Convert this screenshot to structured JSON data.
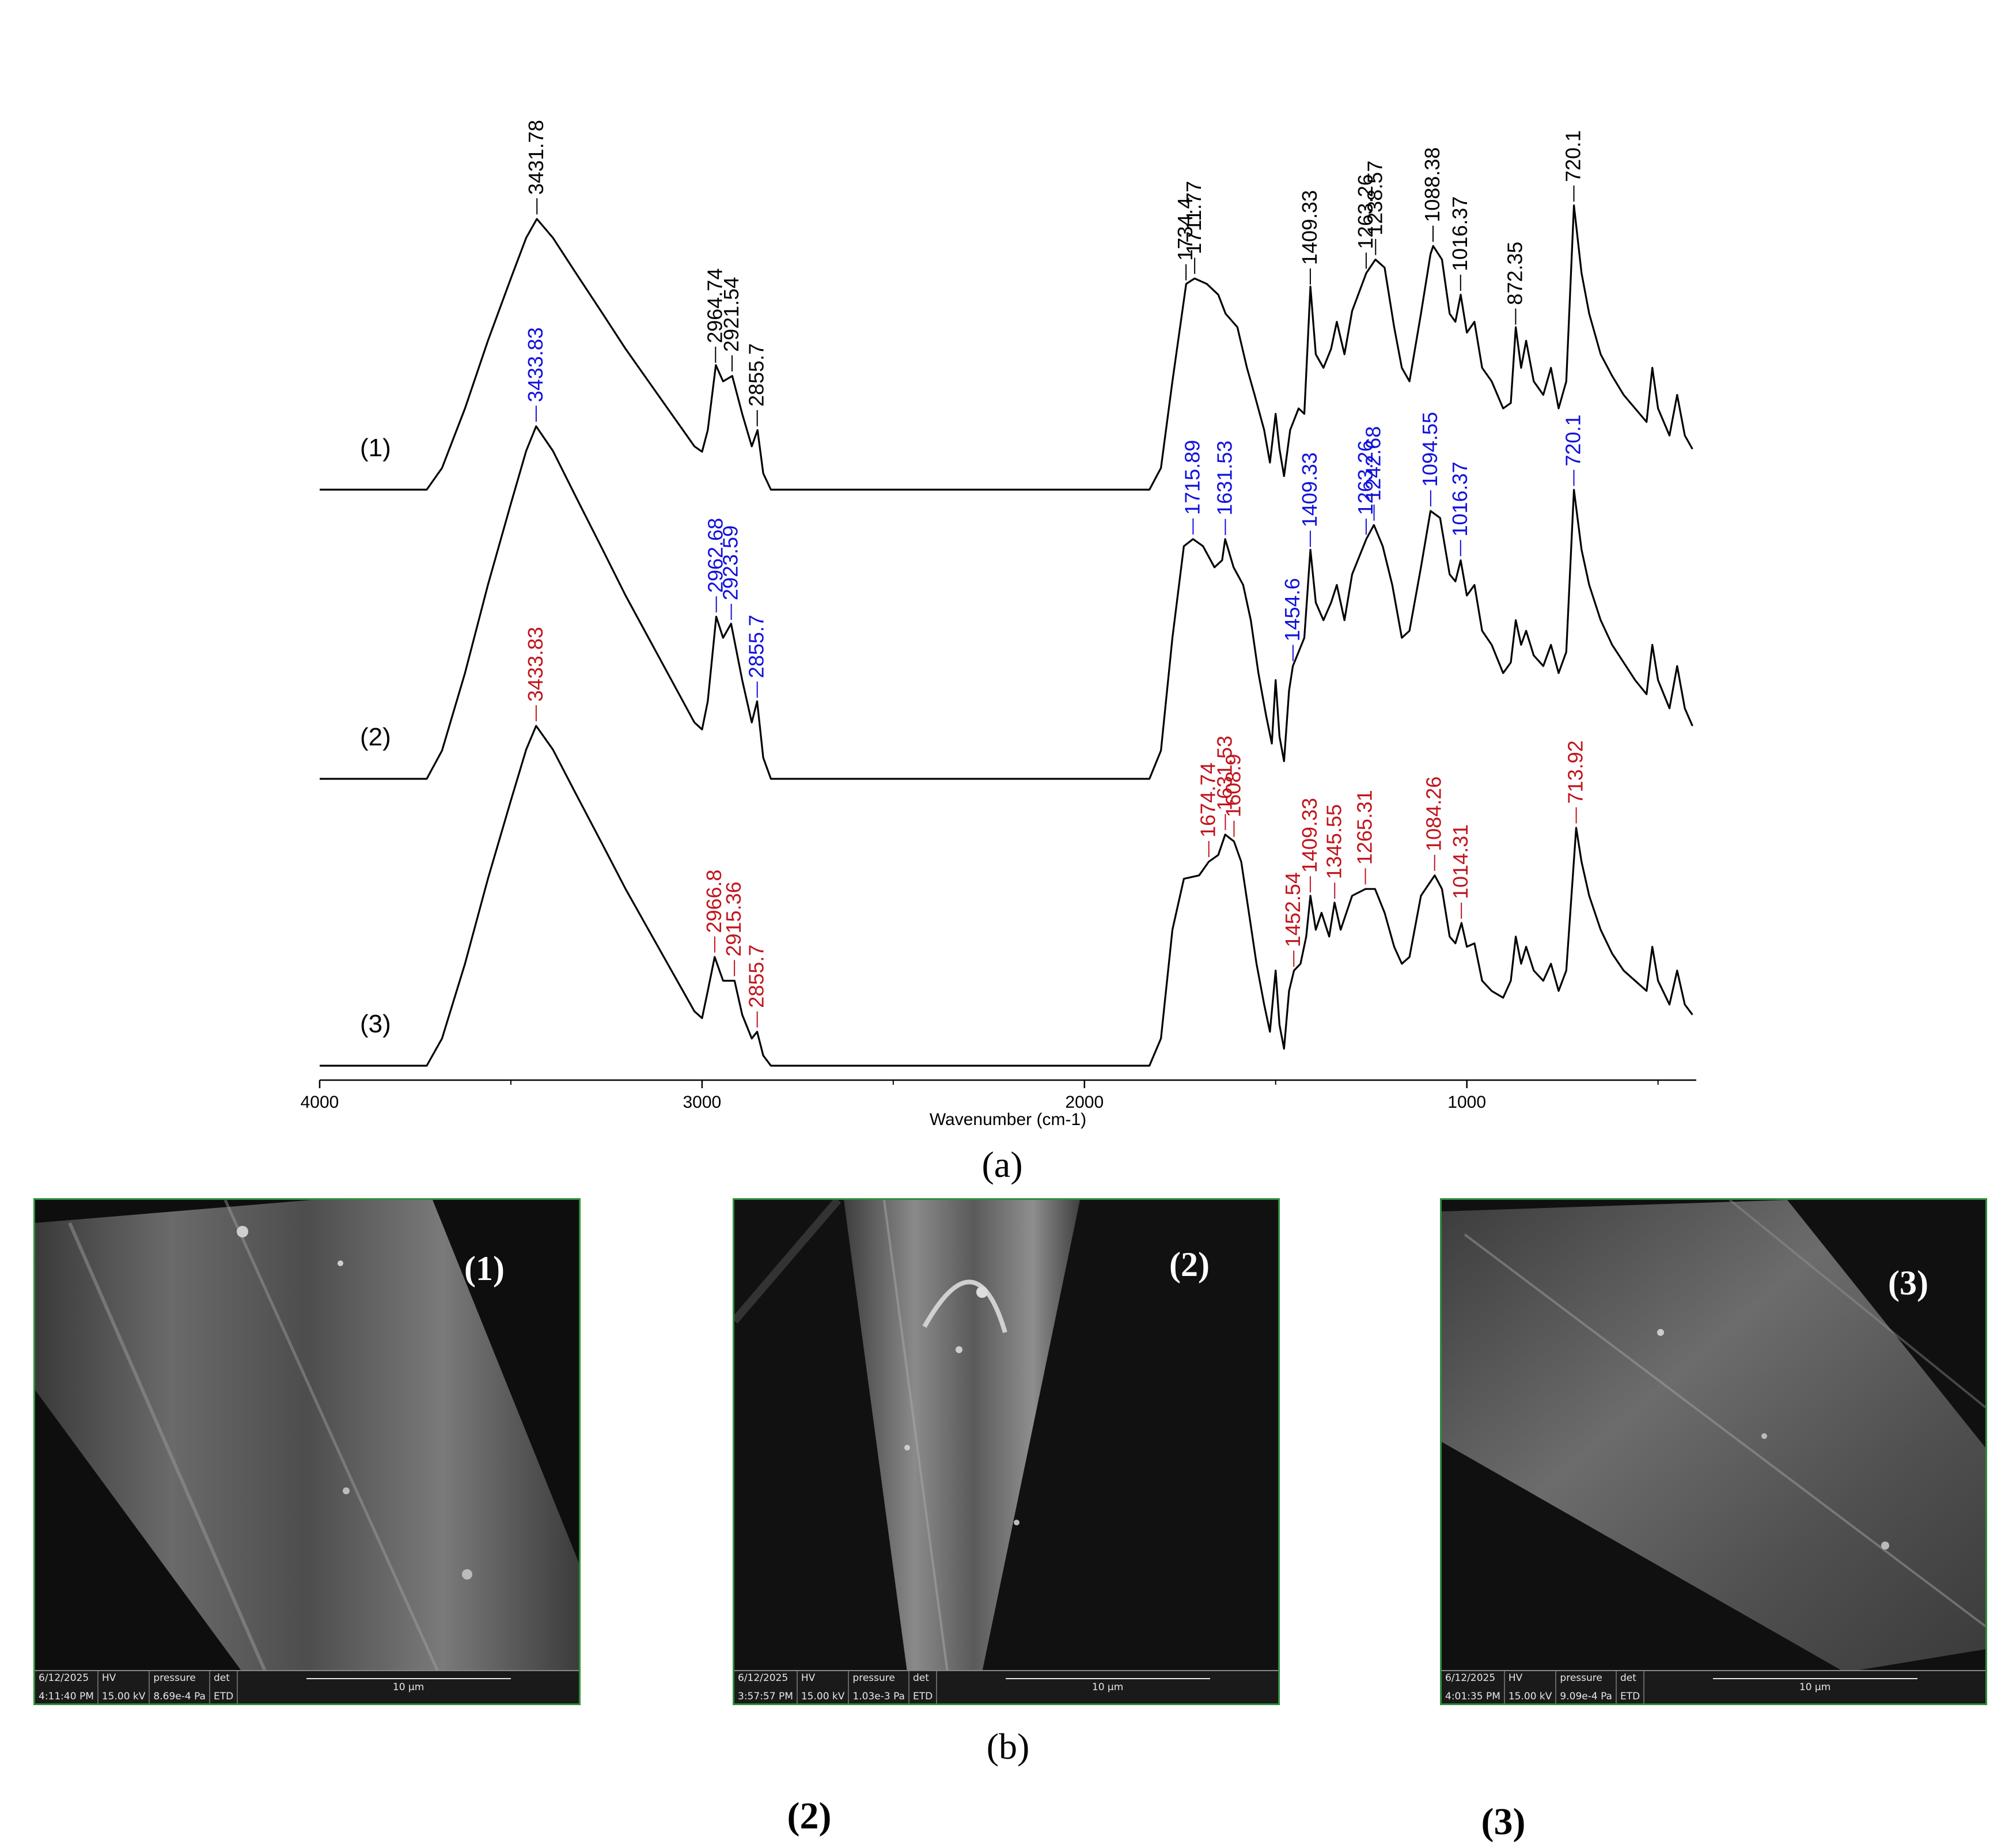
{
  "chart_data": {
    "type": "line",
    "xlabel": "Wavenumber (cm-1)",
    "xlim": [
      4000,
      400
    ],
    "x_reversed": true,
    "xticks": [
      4000,
      3000,
      2000,
      1000
    ],
    "series": [
      {
        "name": "(1)",
        "label_color": "#000000",
        "points": [
          [
            4000,
            0.0
          ],
          [
            3720,
            0.0
          ],
          [
            3680,
            0.08
          ],
          [
            3620,
            0.3
          ],
          [
            3560,
            0.55
          ],
          [
            3500,
            0.78
          ],
          [
            3460,
            0.93
          ],
          [
            3432,
            1.0
          ],
          [
            3390,
            0.93
          ],
          [
            3330,
            0.8
          ],
          [
            3260,
            0.65
          ],
          [
            3200,
            0.52
          ],
          [
            3140,
            0.4
          ],
          [
            3090,
            0.3
          ],
          [
            3050,
            0.22
          ],
          [
            3020,
            0.16
          ],
          [
            3000,
            0.14
          ],
          [
            2985,
            0.22
          ],
          [
            2964,
            0.46
          ],
          [
            2945,
            0.4
          ],
          [
            2921,
            0.42
          ],
          [
            2895,
            0.28
          ],
          [
            2870,
            0.16
          ],
          [
            2855,
            0.22
          ],
          [
            2840,
            0.06
          ],
          [
            2820,
            0.0
          ],
          [
            1830,
            0.0
          ],
          [
            1800,
            0.08
          ],
          [
            1770,
            0.4
          ],
          [
            1734,
            0.76
          ],
          [
            1712,
            0.78
          ],
          [
            1680,
            0.76
          ],
          [
            1650,
            0.72
          ],
          [
            1631,
            0.65
          ],
          [
            1600,
            0.6
          ],
          [
            1575,
            0.45
          ],
          [
            1555,
            0.35
          ],
          [
            1530,
            0.22
          ],
          [
            1515,
            0.1
          ],
          [
            1500,
            0.28
          ],
          [
            1490,
            0.15
          ],
          [
            1478,
            0.05
          ],
          [
            1462,
            0.22
          ],
          [
            1440,
            0.3
          ],
          [
            1425,
            0.28
          ],
          [
            1409,
            0.75
          ],
          [
            1395,
            0.5
          ],
          [
            1375,
            0.45
          ],
          [
            1355,
            0.52
          ],
          [
            1340,
            0.62
          ],
          [
            1320,
            0.5
          ],
          [
            1300,
            0.66
          ],
          [
            1263,
            0.8
          ],
          [
            1239,
            0.85
          ],
          [
            1215,
            0.82
          ],
          [
            1190,
            0.6
          ],
          [
            1170,
            0.45
          ],
          [
            1150,
            0.4
          ],
          [
            1120,
            0.65
          ],
          [
            1095,
            0.87
          ],
          [
            1088,
            0.9
          ],
          [
            1065,
            0.85
          ],
          [
            1045,
            0.65
          ],
          [
            1030,
            0.62
          ],
          [
            1016,
            0.72
          ],
          [
            1000,
            0.58
          ],
          [
            980,
            0.62
          ],
          [
            960,
            0.45
          ],
          [
            935,
            0.4
          ],
          [
            905,
            0.3
          ],
          [
            885,
            0.32
          ],
          [
            872,
            0.6
          ],
          [
            858,
            0.45
          ],
          [
            845,
            0.55
          ],
          [
            825,
            0.4
          ],
          [
            800,
            0.35
          ],
          [
            780,
            0.45
          ],
          [
            760,
            0.3
          ],
          [
            740,
            0.4
          ],
          [
            720,
            1.05
          ],
          [
            700,
            0.8
          ],
          [
            680,
            0.65
          ],
          [
            650,
            0.5
          ],
          [
            620,
            0.42
          ],
          [
            590,
            0.35
          ],
          [
            560,
            0.3
          ],
          [
            530,
            0.25
          ],
          [
            515,
            0.45
          ],
          [
            500,
            0.3
          ],
          [
            470,
            0.2
          ],
          [
            450,
            0.35
          ],
          [
            430,
            0.2
          ],
          [
            410,
            0.15
          ]
        ]
      },
      {
        "name": "(2)",
        "label_color": "#1010dd",
        "points": [
          [
            4000,
            0.0
          ],
          [
            3720,
            0.0
          ],
          [
            3680,
            0.08
          ],
          [
            3620,
            0.3
          ],
          [
            3560,
            0.55
          ],
          [
            3500,
            0.78
          ],
          [
            3460,
            0.93
          ],
          [
            3434,
            1.0
          ],
          [
            3390,
            0.93
          ],
          [
            3330,
            0.8
          ],
          [
            3260,
            0.65
          ],
          [
            3200,
            0.52
          ],
          [
            3140,
            0.4
          ],
          [
            3090,
            0.3
          ],
          [
            3050,
            0.22
          ],
          [
            3020,
            0.16
          ],
          [
            3000,
            0.14
          ],
          [
            2985,
            0.22
          ],
          [
            2963,
            0.46
          ],
          [
            2945,
            0.4
          ],
          [
            2924,
            0.44
          ],
          [
            2895,
            0.28
          ],
          [
            2870,
            0.16
          ],
          [
            2856,
            0.22
          ],
          [
            2840,
            0.06
          ],
          [
            2820,
            0.0
          ],
          [
            1830,
            0.0
          ],
          [
            1800,
            0.08
          ],
          [
            1770,
            0.4
          ],
          [
            1740,
            0.66
          ],
          [
            1716,
            0.68
          ],
          [
            1690,
            0.66
          ],
          [
            1660,
            0.6
          ],
          [
            1640,
            0.62
          ],
          [
            1632,
            0.68
          ],
          [
            1610,
            0.6
          ],
          [
            1585,
            0.55
          ],
          [
            1565,
            0.45
          ],
          [
            1545,
            0.3
          ],
          [
            1525,
            0.18
          ],
          [
            1510,
            0.1
          ],
          [
            1500,
            0.28
          ],
          [
            1490,
            0.12
          ],
          [
            1478,
            0.05
          ],
          [
            1465,
            0.25
          ],
          [
            1455,
            0.32
          ],
          [
            1440,
            0.36
          ],
          [
            1425,
            0.4
          ],
          [
            1409,
            0.65
          ],
          [
            1395,
            0.5
          ],
          [
            1375,
            0.45
          ],
          [
            1355,
            0.5
          ],
          [
            1340,
            0.55
          ],
          [
            1320,
            0.45
          ],
          [
            1300,
            0.58
          ],
          [
            1263,
            0.68
          ],
          [
            1243,
            0.72
          ],
          [
            1220,
            0.66
          ],
          [
            1195,
            0.55
          ],
          [
            1170,
            0.4
          ],
          [
            1150,
            0.42
          ],
          [
            1120,
            0.6
          ],
          [
            1095,
            0.76
          ],
          [
            1070,
            0.74
          ],
          [
            1045,
            0.58
          ],
          [
            1030,
            0.56
          ],
          [
            1016,
            0.62
          ],
          [
            1000,
            0.52
          ],
          [
            980,
            0.55
          ],
          [
            960,
            0.42
          ],
          [
            935,
            0.38
          ],
          [
            905,
            0.3
          ],
          [
            885,
            0.33
          ],
          [
            872,
            0.45
          ],
          [
            858,
            0.38
          ],
          [
            845,
            0.42
          ],
          [
            825,
            0.35
          ],
          [
            800,
            0.32
          ],
          [
            780,
            0.38
          ],
          [
            760,
            0.3
          ],
          [
            740,
            0.36
          ],
          [
            720,
            0.82
          ],
          [
            700,
            0.65
          ],
          [
            680,
            0.55
          ],
          [
            650,
            0.45
          ],
          [
            620,
            0.38
          ],
          [
            590,
            0.33
          ],
          [
            560,
            0.28
          ],
          [
            530,
            0.24
          ],
          [
            515,
            0.38
          ],
          [
            500,
            0.28
          ],
          [
            470,
            0.2
          ],
          [
            450,
            0.32
          ],
          [
            430,
            0.2
          ],
          [
            410,
            0.15
          ]
        ]
      },
      {
        "name": "(3)",
        "label_color": "#c0141c",
        "points": [
          [
            4000,
            0.0
          ],
          [
            3720,
            0.0
          ],
          [
            3680,
            0.08
          ],
          [
            3620,
            0.3
          ],
          [
            3560,
            0.55
          ],
          [
            3500,
            0.78
          ],
          [
            3460,
            0.93
          ],
          [
            3434,
            1.0
          ],
          [
            3390,
            0.93
          ],
          [
            3330,
            0.8
          ],
          [
            3260,
            0.65
          ],
          [
            3200,
            0.52
          ],
          [
            3140,
            0.4
          ],
          [
            3090,
            0.3
          ],
          [
            3050,
            0.22
          ],
          [
            3020,
            0.16
          ],
          [
            3000,
            0.14
          ],
          [
            2985,
            0.22
          ],
          [
            2967,
            0.32
          ],
          [
            2945,
            0.25
          ],
          [
            2915,
            0.25
          ],
          [
            2895,
            0.15
          ],
          [
            2870,
            0.08
          ],
          [
            2856,
            0.1
          ],
          [
            2840,
            0.03
          ],
          [
            2820,
            0.0
          ],
          [
            1830,
            0.0
          ],
          [
            1800,
            0.08
          ],
          [
            1770,
            0.4
          ],
          [
            1740,
            0.55
          ],
          [
            1700,
            0.56
          ],
          [
            1675,
            0.6
          ],
          [
            1650,
            0.62
          ],
          [
            1632,
            0.68
          ],
          [
            1609,
            0.66
          ],
          [
            1590,
            0.6
          ],
          [
            1570,
            0.45
          ],
          [
            1550,
            0.3
          ],
          [
            1530,
            0.18
          ],
          [
            1515,
            0.1
          ],
          [
            1500,
            0.28
          ],
          [
            1490,
            0.12
          ],
          [
            1478,
            0.05
          ],
          [
            1465,
            0.22
          ],
          [
            1452,
            0.28
          ],
          [
            1435,
            0.3
          ],
          [
            1420,
            0.38
          ],
          [
            1409,
            0.5
          ],
          [
            1395,
            0.4
          ],
          [
            1380,
            0.45
          ],
          [
            1360,
            0.38
          ],
          [
            1346,
            0.48
          ],
          [
            1330,
            0.4
          ],
          [
            1300,
            0.5
          ],
          [
            1265,
            0.52
          ],
          [
            1240,
            0.52
          ],
          [
            1215,
            0.45
          ],
          [
            1190,
            0.35
          ],
          [
            1170,
            0.3
          ],
          [
            1150,
            0.32
          ],
          [
            1120,
            0.5
          ],
          [
            1084,
            0.56
          ],
          [
            1065,
            0.52
          ],
          [
            1045,
            0.38
          ],
          [
            1030,
            0.36
          ],
          [
            1014,
            0.42
          ],
          [
            1000,
            0.35
          ],
          [
            980,
            0.36
          ],
          [
            960,
            0.25
          ],
          [
            935,
            0.22
          ],
          [
            905,
            0.2
          ],
          [
            885,
            0.25
          ],
          [
            872,
            0.38
          ],
          [
            858,
            0.3
          ],
          [
            845,
            0.35
          ],
          [
            825,
            0.28
          ],
          [
            800,
            0.25
          ],
          [
            780,
            0.3
          ],
          [
            760,
            0.22
          ],
          [
            740,
            0.28
          ],
          [
            714,
            0.7
          ],
          [
            700,
            0.6
          ],
          [
            680,
            0.5
          ],
          [
            650,
            0.4
          ],
          [
            620,
            0.33
          ],
          [
            590,
            0.28
          ],
          [
            560,
            0.25
          ],
          [
            530,
            0.22
          ],
          [
            515,
            0.35
          ],
          [
            500,
            0.25
          ],
          [
            470,
            0.18
          ],
          [
            450,
            0.28
          ],
          [
            430,
            0.18
          ],
          [
            410,
            0.15
          ]
        ]
      }
    ],
    "peak_labels": [
      {
        "series": 0,
        "values": [
          "3431.78",
          "2964.74",
          "2921.54",
          "2855.7",
          "1734.4",
          "1711.77",
          "1409.33",
          "1263.26",
          "1238.57",
          "1088.38",
          "1016.37",
          "872.35",
          "720.1"
        ]
      },
      {
        "series": 1,
        "values": [
          "3433.83",
          "2962.68",
          "2923.59",
          "2855.7",
          "1715.89",
          "1631.53",
          "1454.6",
          "1409.33",
          "1263.26",
          "1242.68",
          "1094.55",
          "1016.37",
          "720.1"
        ]
      },
      {
        "series": 2,
        "values": [
          "3433.83",
          "2966.8",
          "2915.36",
          "2855.7",
          "1674.74",
          "1631.53",
          "1608.9",
          "1452.54",
          "1409.33",
          "1345.55",
          "1265.31",
          "1084.26",
          "1014.31",
          "713.92"
        ]
      }
    ]
  },
  "panels": {
    "a_label": "(a)",
    "b_label": "(b)"
  },
  "sem": [
    {
      "tag": "(1)",
      "date": "6/12/2025",
      "time": "4:11:40 PM",
      "hv_label": "HV",
      "hv": "15.00 kV",
      "pressure_label": "pressure",
      "pressure": "8.69e-4 Pa",
      "det_label": "det",
      "det": "ETD",
      "scale": "10 μm"
    },
    {
      "tag": "(2)",
      "date": "6/12/2025",
      "time": "3:57:57 PM",
      "hv_label": "HV",
      "hv": "15.00 kV",
      "pressure_label": "pressure",
      "pressure": "1.03e-3 Pa",
      "det_label": "det",
      "det": "ETD",
      "scale": "10 μm"
    },
    {
      "tag": "(3)",
      "date": "6/12/2025",
      "time": "4:01:35 PM",
      "hv_label": "HV",
      "hv": "15.00 kV",
      "pressure_label": "pressure",
      "pressure": "9.09e-4 Pa",
      "det_label": "det",
      "det": "ETD",
      "scale": "10 μm"
    }
  ],
  "bottom_labels": [
    "(2)",
    "(3)"
  ]
}
